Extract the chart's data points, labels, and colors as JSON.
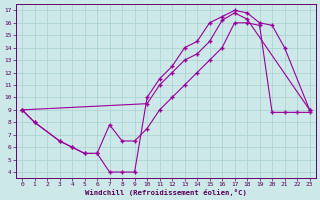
{
  "xlabel": "Windchill (Refroidissement éolien,°C)",
  "bg_color": "#cde8e8",
  "line_color": "#990099",
  "xlim": [
    -0.5,
    23.5
  ],
  "ylim": [
    3.5,
    17.5
  ],
  "yticks": [
    4,
    5,
    6,
    7,
    8,
    9,
    10,
    11,
    12,
    13,
    14,
    15,
    16,
    17
  ],
  "xticks": [
    0,
    1,
    2,
    3,
    4,
    5,
    6,
    7,
    8,
    9,
    10,
    11,
    12,
    13,
    14,
    15,
    16,
    17,
    18,
    19,
    20,
    21,
    22,
    23
  ],
  "curve1_x": [
    0,
    1,
    3,
    4,
    5,
    6,
    7,
    8,
    9,
    10,
    11,
    12,
    13,
    14,
    15,
    16,
    17,
    18,
    19,
    20,
    21,
    23
  ],
  "curve1_y": [
    9,
    8,
    6.5,
    6,
    5.5,
    5.5,
    4,
    4,
    4,
    10,
    11.5,
    12.5,
    14,
    14.5,
    16,
    16.5,
    17,
    16.8,
    16,
    15.8,
    14,
    9
  ],
  "curve2_x": [
    0,
    10,
    11,
    12,
    13,
    14,
    15,
    16,
    17,
    18,
    23
  ],
  "curve2_y": [
    9,
    9.5,
    11,
    12,
    13,
    13.5,
    14.5,
    16.2,
    16.8,
    16.3,
    9
  ],
  "curve3_x": [
    0,
    1,
    3,
    4,
    5,
    6,
    7,
    8,
    9,
    10,
    11,
    12,
    13,
    14,
    15,
    16,
    17,
    18,
    19,
    20,
    21,
    22,
    23
  ],
  "curve3_y": [
    9,
    8,
    6.5,
    6,
    5.5,
    5.5,
    7.8,
    6.5,
    6.5,
    7.5,
    9,
    10,
    11,
    12,
    13,
    14,
    16,
    16,
    15.8,
    8.8,
    8.8,
    8.8,
    8.8
  ]
}
